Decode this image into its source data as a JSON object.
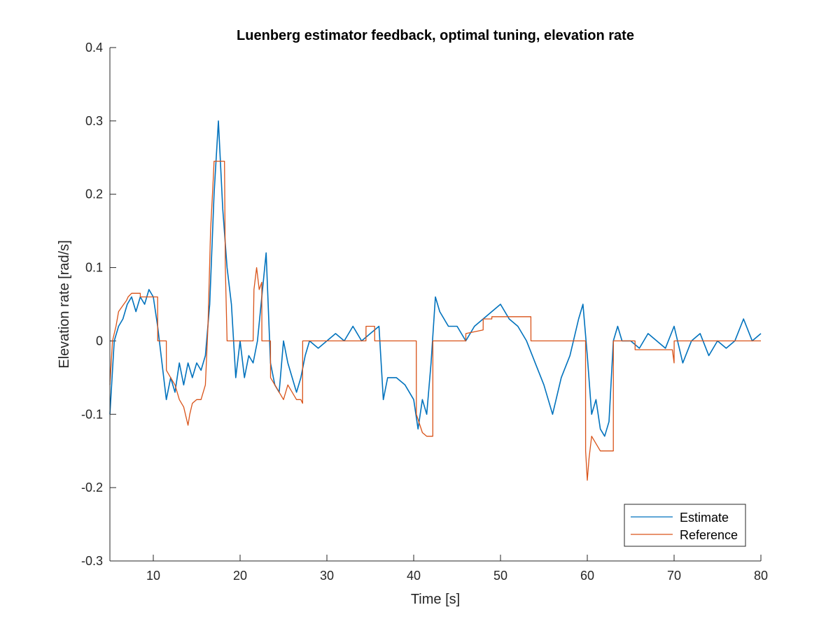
{
  "chart_data": {
    "type": "line",
    "title": "Luenberg estimator feedback, optimal tuning, elevation rate",
    "xlabel": "Time [s]",
    "ylabel": "Elevation rate [rad/s]",
    "xlim": [
      5,
      80
    ],
    "ylim": [
      -0.3,
      0.4
    ],
    "xticks": [
      10,
      20,
      30,
      40,
      50,
      60,
      70,
      80
    ],
    "xtick_labels": [
      "10",
      "20",
      "30",
      "40",
      "50",
      "60",
      "70",
      "80"
    ],
    "yticks": [
      -0.3,
      -0.2,
      -0.1,
      0,
      0.1,
      0.2,
      0.3,
      0.4
    ],
    "ytick_labels": [
      "-0.3",
      "-0.2",
      "-0.1",
      "0",
      "0.1",
      "0.2",
      "0.3",
      "0.4"
    ],
    "grid": false,
    "legend_position": "bottom-right",
    "series": [
      {
        "name": "Estimate",
        "color": "#0072BD",
        "x": [
          5.0,
          5.5,
          6.0,
          6.5,
          7.0,
          7.5,
          8.0,
          8.5,
          9.0,
          9.5,
          10.0,
          10.5,
          11.0,
          11.5,
          12.0,
          12.5,
          13.0,
          13.5,
          14.0,
          14.5,
          15.0,
          15.5,
          16.0,
          16.5,
          17.0,
          17.5,
          18.0,
          18.5,
          19.0,
          19.5,
          20.0,
          20.5,
          21.0,
          21.5,
          22.0,
          22.5,
          23.0,
          23.5,
          24.0,
          24.5,
          25.0,
          25.5,
          26.0,
          26.5,
          27.0,
          27.5,
          28.0,
          29.0,
          30.0,
          31.0,
          32.0,
          33.0,
          34.0,
          35.0,
          36.0,
          36.5,
          37.0,
          38.0,
          39.0,
          40.0,
          40.5,
          41.0,
          41.5,
          42.0,
          42.5,
          43.0,
          44.0,
          45.0,
          46.0,
          47.0,
          48.0,
          49.0,
          50.0,
          51.0,
          52.0,
          53.0,
          54.0,
          55.0,
          56.0,
          57.0,
          58.0,
          59.0,
          59.5,
          60.0,
          60.5,
          61.0,
          61.5,
          62.0,
          62.5,
          63.0,
          63.5,
          64.0,
          65.0,
          66.0,
          67.0,
          68.0,
          69.0,
          70.0,
          71.0,
          72.0,
          73.0,
          74.0,
          75.0,
          76.0,
          77.0,
          78.0,
          79.0,
          80.0
        ],
        "y": [
          -0.1,
          0.0,
          0.02,
          0.03,
          0.05,
          0.06,
          0.04,
          0.06,
          0.05,
          0.07,
          0.06,
          0.02,
          -0.03,
          -0.08,
          -0.05,
          -0.07,
          -0.03,
          -0.06,
          -0.03,
          -0.05,
          -0.03,
          -0.04,
          -0.02,
          0.05,
          0.2,
          0.3,
          0.18,
          0.1,
          0.05,
          -0.05,
          0.0,
          -0.05,
          -0.02,
          -0.03,
          0.0,
          0.06,
          0.12,
          -0.03,
          -0.06,
          -0.07,
          0.0,
          -0.03,
          -0.05,
          -0.07,
          -0.05,
          -0.02,
          0.0,
          -0.01,
          0.0,
          0.01,
          0.0,
          0.02,
          0.0,
          0.01,
          0.02,
          -0.08,
          -0.05,
          -0.05,
          -0.06,
          -0.08,
          -0.12,
          -0.08,
          -0.1,
          -0.03,
          0.06,
          0.04,
          0.02,
          0.02,
          0.0,
          0.02,
          0.03,
          0.04,
          0.05,
          0.03,
          0.02,
          0.0,
          -0.03,
          -0.06,
          -0.1,
          -0.05,
          -0.02,
          0.03,
          0.05,
          -0.02,
          -0.1,
          -0.08,
          -0.12,
          -0.13,
          -0.11,
          0.0,
          0.02,
          0.0,
          0.0,
          -0.01,
          0.01,
          0.0,
          -0.01,
          0.02,
          -0.03,
          0.0,
          0.01,
          -0.02,
          0.0,
          -0.01,
          0.0,
          0.03,
          0.0,
          0.01
        ]
      },
      {
        "name": "Reference",
        "color": "#D95319",
        "x": [
          5.0,
          5.3,
          5.7,
          6.0,
          6.3,
          6.6,
          6.9,
          7.1,
          7.5,
          8.0,
          8.5,
          8.51,
          10.5,
          10.51,
          11.5,
          11.51,
          12.0,
          12.5,
          13.0,
          13.5,
          14.0,
          14.2,
          14.5,
          15.0,
          15.5,
          16.0,
          16.3,
          16.6,
          16.9,
          17.0,
          17.3,
          18.2,
          18.3,
          18.5,
          18.51,
          21.5,
          21.6,
          21.9,
          22.2,
          22.5,
          22.51,
          23.5,
          23.51,
          24.5,
          25.0,
          25.5,
          26.0,
          26.5,
          27.0,
          27.2,
          27.21,
          34.5,
          34.51,
          35.5,
          35.51,
          40.3,
          40.31,
          41.0,
          41.5,
          42.2,
          42.21,
          46.0,
          46.01,
          48.0,
          48.01,
          49.0,
          49.01,
          53.5,
          53.51,
          59.8,
          59.81,
          60.0,
          60.2,
          60.5,
          61.0,
          61.5,
          62.0,
          63.0,
          63.01,
          65.5,
          65.51,
          69.8,
          70.0,
          70.01,
          80.0
        ],
        "y": [
          -0.06,
          0.0,
          0.02,
          0.04,
          0.045,
          0.05,
          0.055,
          0.06,
          0.065,
          0.065,
          0.065,
          0.06,
          0.06,
          0.0,
          0.0,
          -0.04,
          -0.05,
          -0.06,
          -0.08,
          -0.09,
          -0.115,
          -0.1,
          -0.085,
          -0.08,
          -0.08,
          -0.06,
          0.02,
          0.15,
          0.22,
          0.245,
          0.245,
          0.245,
          0.1,
          0.0,
          0.0,
          0.0,
          0.07,
          0.1,
          0.07,
          0.08,
          0.0,
          0.0,
          -0.05,
          -0.07,
          -0.08,
          -0.06,
          -0.07,
          -0.08,
          -0.08,
          -0.085,
          0.0,
          0.0,
          0.02,
          0.02,
          0.0,
          0.0,
          -0.1,
          -0.125,
          -0.13,
          -0.13,
          0.0,
          0.0,
          0.01,
          0.015,
          0.03,
          0.03,
          0.033,
          0.033,
          0.0,
          0.0,
          -0.15,
          -0.19,
          -0.16,
          -0.13,
          -0.14,
          -0.15,
          -0.15,
          -0.15,
          0.0,
          0.0,
          -0.012,
          -0.012,
          -0.03,
          0.0,
          0.0
        ]
      }
    ]
  }
}
